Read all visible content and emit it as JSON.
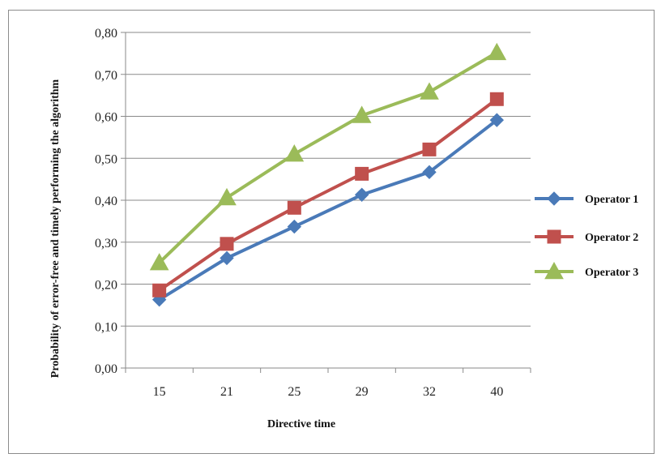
{
  "chart_data": {
    "type": "line",
    "categories": [
      "15",
      "21",
      "25",
      "29",
      "32",
      "40"
    ],
    "series": [
      {
        "name": "Operator 1",
        "values": [
          0.163,
          0.262,
          0.337,
          0.413,
          0.467,
          0.591
        ],
        "color": "#4a7ab8",
        "marker": "diamond"
      },
      {
        "name": "Operator 2",
        "values": [
          0.185,
          0.296,
          0.382,
          0.463,
          0.521,
          0.641
        ],
        "color": "#c0504d",
        "marker": "square"
      },
      {
        "name": "Operator 3",
        "values": [
          0.251,
          0.406,
          0.51,
          0.602,
          0.658,
          0.752
        ],
        "color": "#9bbb59",
        "marker": "triangle"
      }
    ],
    "ylim": [
      0,
      0.8
    ],
    "yticks": [
      "0,00",
      "0,10",
      "0,20",
      "0,30",
      "0,40",
      "0,50",
      "0,60",
      "0,70",
      "0,80"
    ],
    "xlabel": "Directive time",
    "ylabel": "Probability of error-free and timely performing the algorithm",
    "grid": true,
    "legend_position": "right"
  }
}
